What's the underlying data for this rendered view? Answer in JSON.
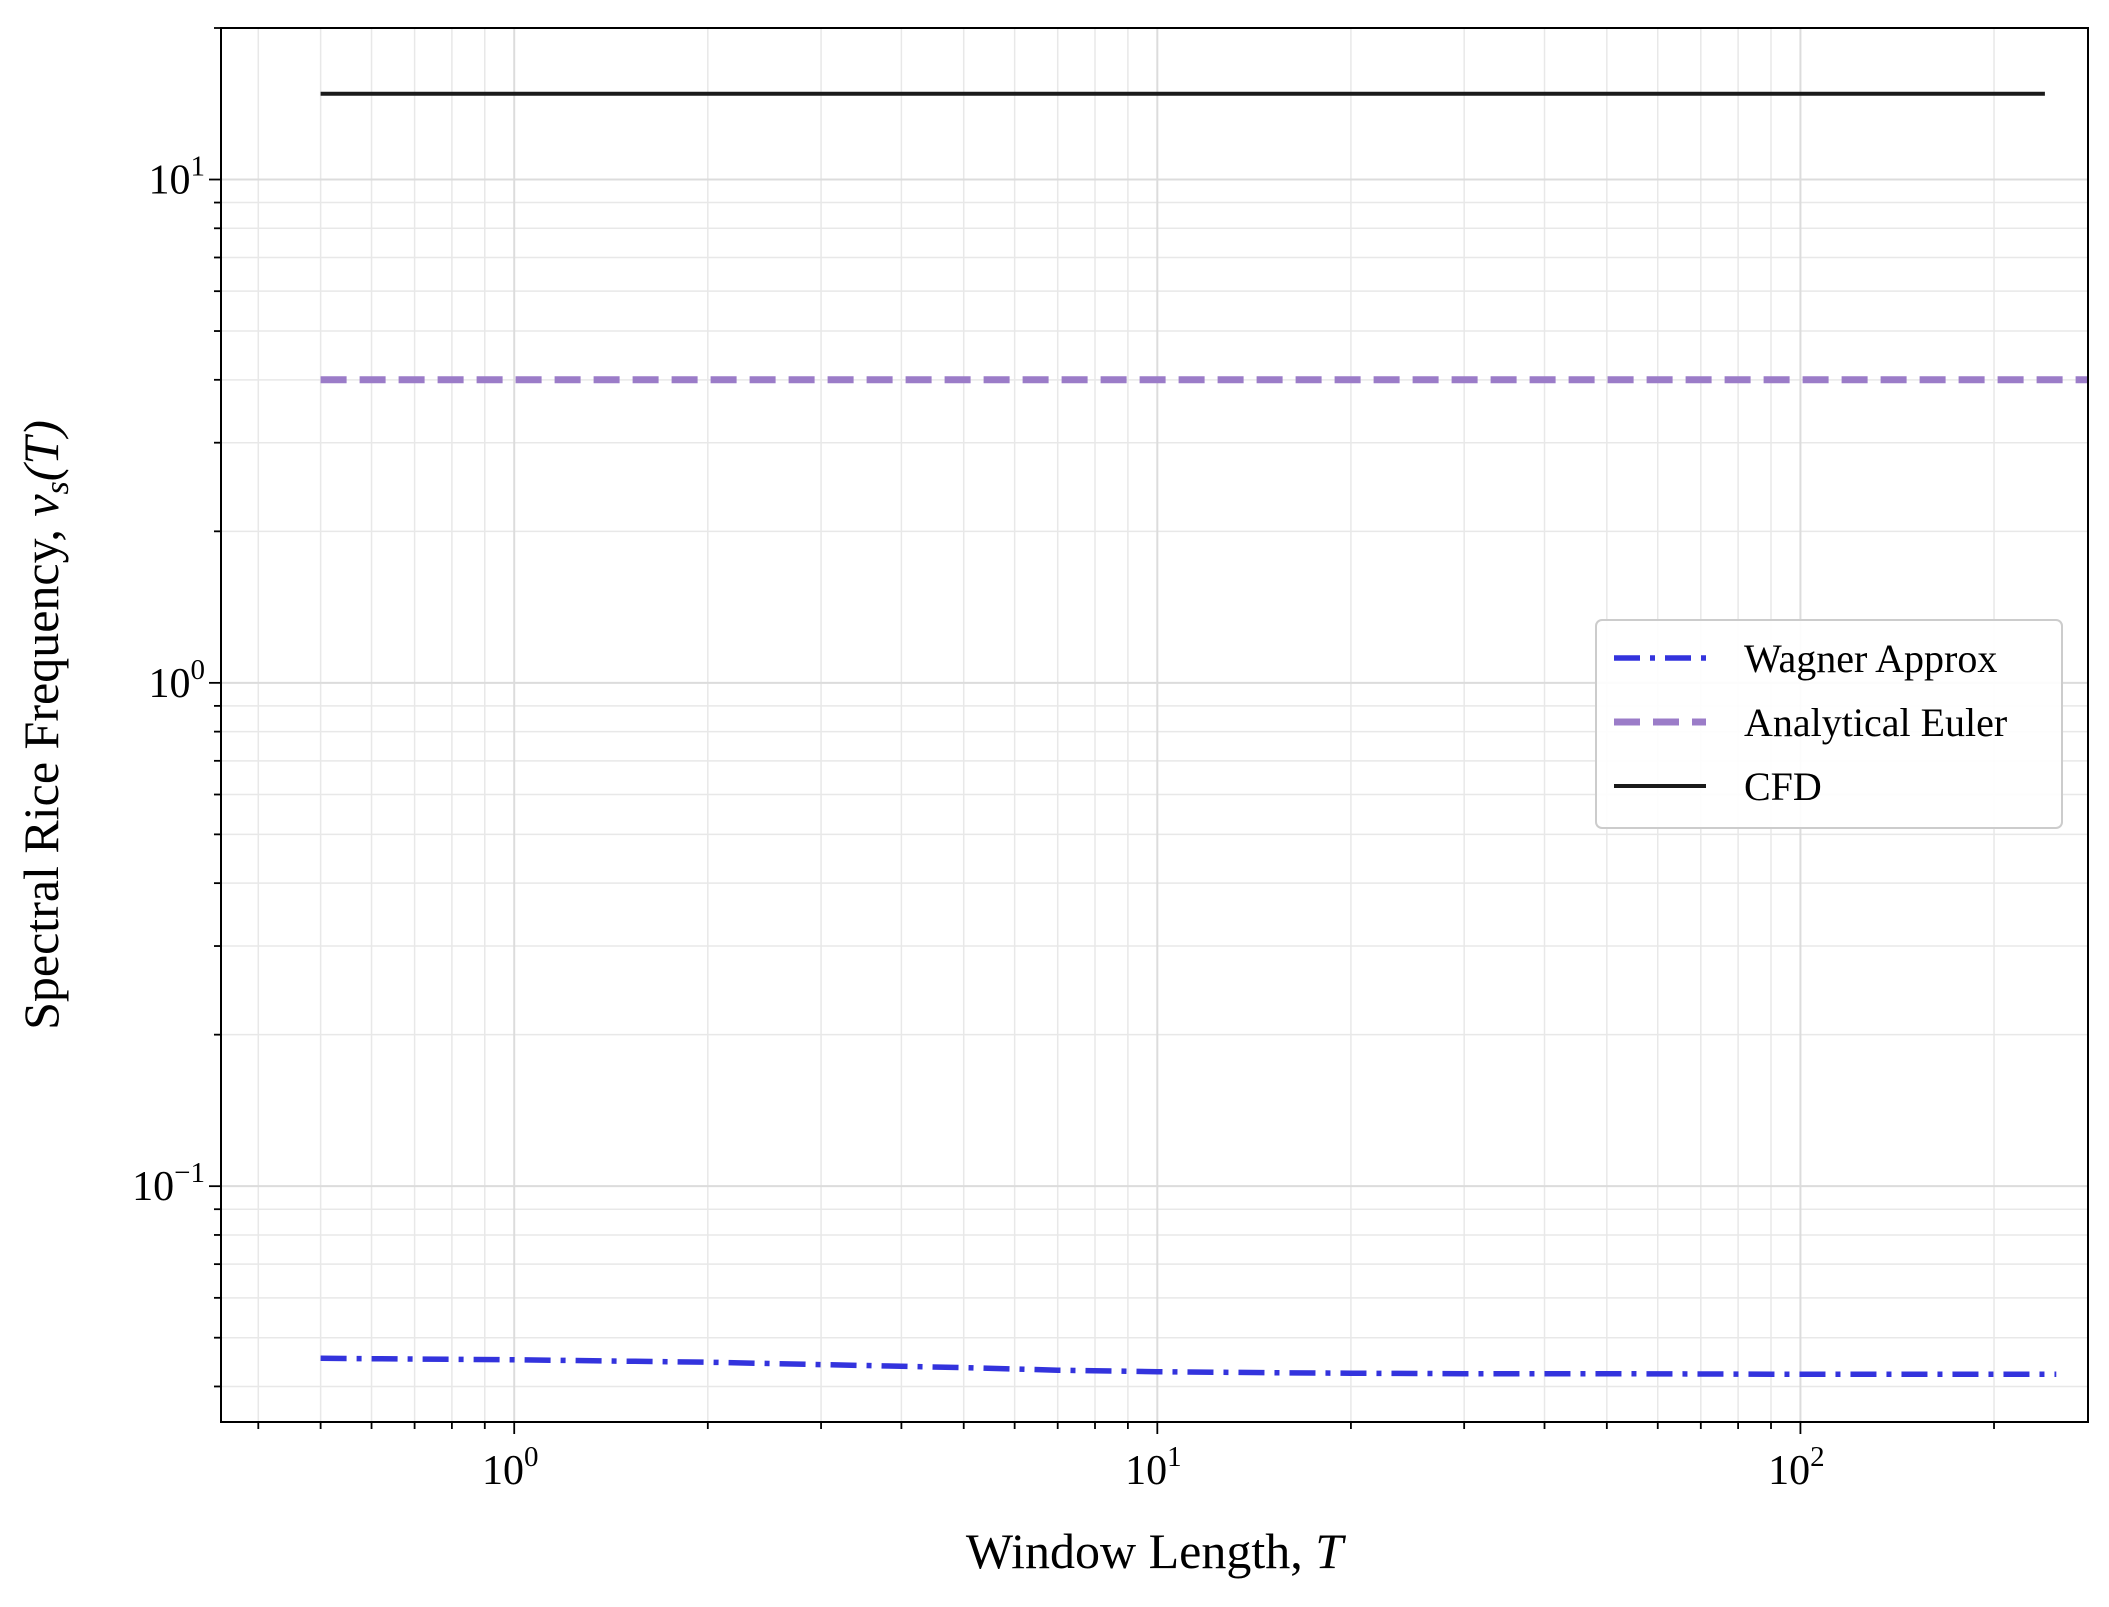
{
  "chart_data": {
    "type": "line",
    "title": "",
    "xlabel": "Window Length, ",
    "xlabel_var": "T",
    "ylabel": "Spectral Rice Frequency, ",
    "ylabel_var": "ν",
    "ylabel_sub": "s",
    "ylabel_arg": "(T)",
    "xscale": "log",
    "yscale": "log",
    "xlim": [
      0.35,
      280
    ],
    "ylim": [
      0.034,
      20
    ],
    "grid": "both major and minor",
    "legend_position": "center-right",
    "x_ticks": [
      {
        "mantissa": "10",
        "exp": "0"
      },
      {
        "mantissa": "10",
        "exp": "1"
      },
      {
        "mantissa": "10",
        "exp": "2"
      }
    ],
    "y_ticks": [
      {
        "mantissa": "10",
        "exp": "−1"
      },
      {
        "mantissa": "10",
        "exp": "0"
      },
      {
        "mantissa": "10",
        "exp": "1"
      }
    ],
    "series": [
      {
        "name": "Wagner Approx",
        "color": "#3333dd",
        "style": "dashdot",
        "x": [
          0.5,
          1,
          2,
          3,
          5,
          7,
          10,
          15,
          20,
          30,
          50,
          100,
          150,
          250
        ],
        "y": [
          0.0455,
          0.0452,
          0.0447,
          0.0442,
          0.0436,
          0.0431,
          0.0428,
          0.0426,
          0.0425,
          0.0424,
          0.0424,
          0.0423,
          0.0423,
          0.0423
        ]
      },
      {
        "name": "Analytical Euler",
        "color": "#9b7cc8",
        "style": "dashed",
        "x": [
          0.5,
          280
        ],
        "y": [
          4.0,
          4.0
        ]
      },
      {
        "name": "CFD",
        "color": "#1a1a1a",
        "style": "solid",
        "x": [
          0.5,
          240
        ],
        "y": [
          14.8,
          14.8
        ]
      }
    ]
  }
}
